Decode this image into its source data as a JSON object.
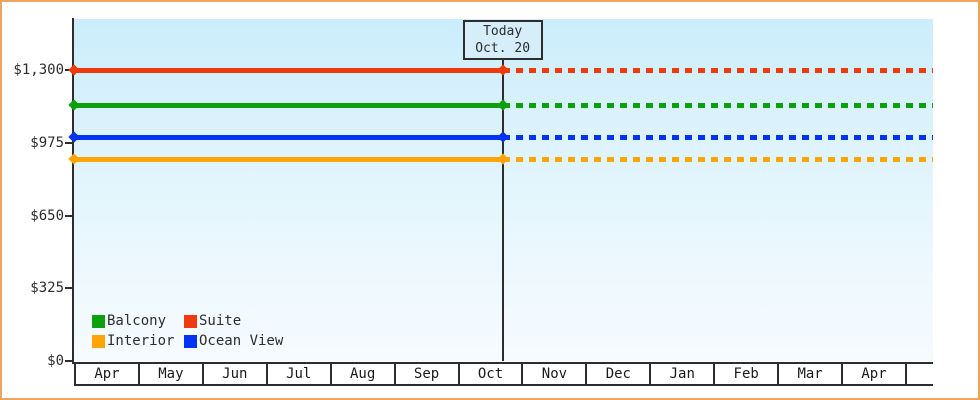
{
  "chart_data": {
    "type": "line",
    "title": "",
    "description": "Cruise cabin price history by category; lines become dashed (forecast) after today marker",
    "y_axis": {
      "ticks": [
        {
          "label": "$1,300",
          "value": 1300
        },
        {
          "label": "$975",
          "value": 975
        },
        {
          "label": "$650",
          "value": 650
        },
        {
          "label": "$325",
          "value": 325
        },
        {
          "label": "$0",
          "value": 0
        }
      ],
      "min": 0,
      "max_visible": 1530
    },
    "x_axis": {
      "months": [
        "Apr",
        "May",
        "Jun",
        "Jul",
        "Aug",
        "Sep",
        "Oct",
        "Nov",
        "Dec",
        "Jan",
        "Feb",
        "Mar",
        "Apr"
      ],
      "trailing_partial_cell": true
    },
    "today": {
      "line1": "Today",
      "line2": "Oct. 20",
      "x_fraction": 0.499
    },
    "series": [
      {
        "name": "Suite",
        "color": "#f0390c",
        "value": 1300,
        "style": "solid-then-dashed"
      },
      {
        "name": "Balcony",
        "color": "#0ca00c",
        "value": 1145,
        "style": "solid-then-dashed"
      },
      {
        "name": "Ocean View",
        "color": "#0434f0",
        "value": 1000,
        "style": "solid-then-dashed"
      },
      {
        "name": "Interior",
        "color": "#ffa405",
        "value": 900,
        "style": "solid-then-dashed"
      }
    ],
    "legend": {
      "columns": 2,
      "items": [
        {
          "label": "Balcony",
          "color": "#0ca00c"
        },
        {
          "label": "Suite",
          "color": "#f0390c"
        },
        {
          "label": "Interior",
          "color": "#ffa405"
        },
        {
          "label": "Ocean View",
          "color": "#0434f0"
        }
      ]
    }
  },
  "colors": {
    "frame_border": "#eba55c",
    "axis": "#2d2d2d",
    "plot_bg_top": "#cbedfb",
    "plot_bg_bottom": "#f6fbff",
    "today_box_bg": "#d5eefa",
    "month_band_bg": "#ffffff"
  }
}
